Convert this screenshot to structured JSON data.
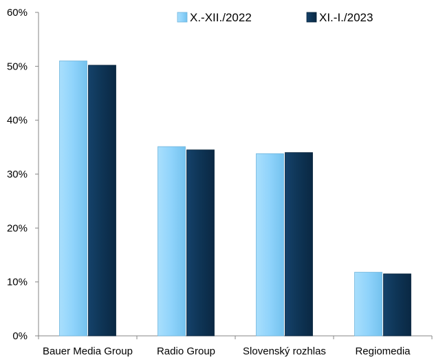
{
  "chart_data": {
    "type": "bar",
    "title": "",
    "xlabel": "",
    "ylabel": "",
    "categories": [
      "Bauer Media Group",
      "Radio Group",
      "Slovenský rozhlas",
      "Regiomedia"
    ],
    "series": [
      {
        "name": "X.-XII./2022",
        "values": [
          51,
          35.1,
          33.8,
          11.8
        ],
        "color": "#8fd3fb"
      },
      {
        "name": "XI.-I./2023",
        "values": [
          50.2,
          34.5,
          34.0,
          11.5
        ],
        "color": "#0e3455"
      }
    ],
    "ylim": [
      0,
      60
    ],
    "yticks": [
      "0%",
      "10%",
      "20%",
      "30%",
      "40%",
      "50%",
      "60%"
    ],
    "grid": false,
    "legend_position": "top-right"
  }
}
